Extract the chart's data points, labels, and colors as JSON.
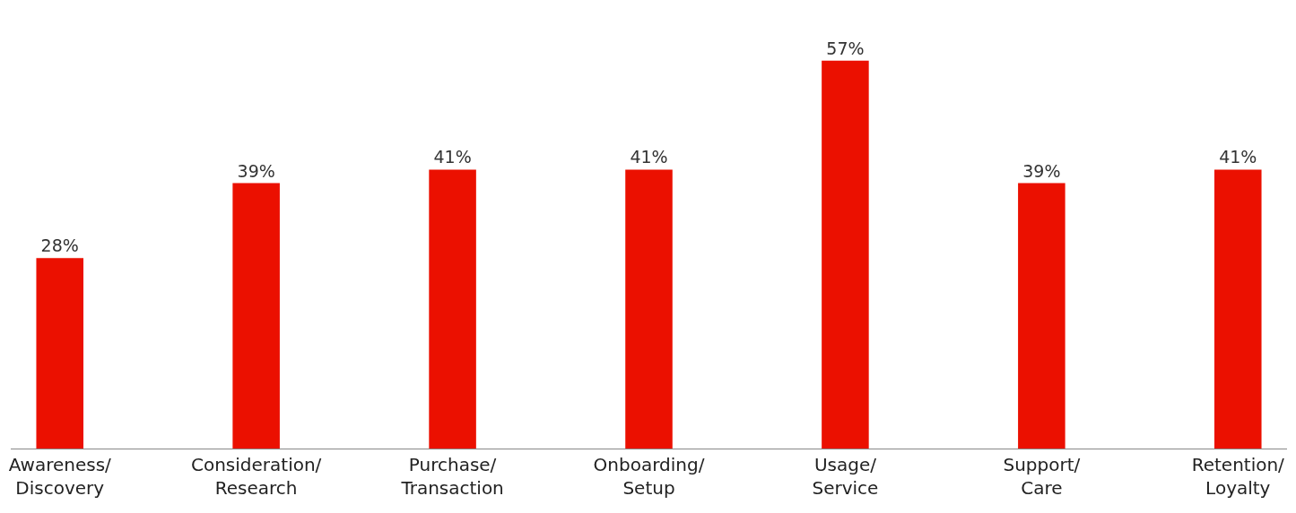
{
  "chart_data": {
    "type": "bar",
    "categories": [
      "Awareness/\nDiscovery",
      "Consideration/\nResearch",
      "Purchase/\nTransaction",
      "Onboarding/\nSetup",
      "Usage/\nService",
      "Support/\nCare",
      "Retention/\nLoyalty"
    ],
    "values": [
      28,
      39,
      41,
      41,
      57,
      39,
      41
    ],
    "value_labels": [
      "28%",
      "39%",
      "41%",
      "41%",
      "57%",
      "39%",
      "41%"
    ],
    "color": "#eb1000"
  }
}
